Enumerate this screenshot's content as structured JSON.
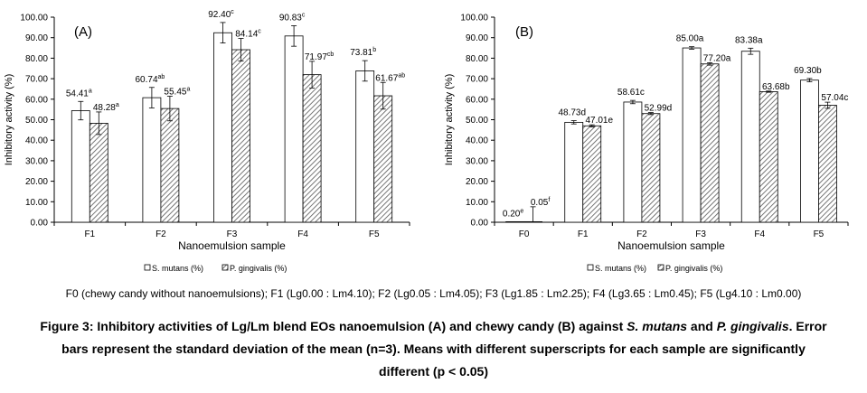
{
  "charts": [
    {
      "panel_label": "(A)",
      "xlabel": "Nanoemulsion sample",
      "ylabel": "Inhibitory activity (%)",
      "ylim": [
        0,
        100
      ],
      "yticks": [
        "0.00",
        "10.00",
        "20.00",
        "30.00",
        "40.00",
        "50.00",
        "60.00",
        "70.00",
        "80.00",
        "90.00",
        "100.00"
      ],
      "categories": [
        "F1",
        "F2",
        "F3",
        "F4",
        "F5"
      ],
      "series": [
        {
          "name": "S. mutans (%)",
          "fill": "#ffffff",
          "values": [
            54.41,
            60.74,
            92.4,
            90.83,
            73.81
          ],
          "errors": [
            4.5,
            5.0,
            5.0,
            5.0,
            5.0
          ],
          "labels": [
            "54.41",
            "60.74",
            "92.40",
            "90.83",
            "73.81"
          ],
          "sups": [
            "a",
            "ab",
            "c",
            "c",
            "b"
          ]
        },
        {
          "name": "P. gingivalis (%)",
          "fill": "hatch",
          "values": [
            48.28,
            55.45,
            84.14,
            71.97,
            61.67
          ],
          "errors": [
            5.5,
            6.0,
            5.5,
            6.5,
            6.5
          ],
          "labels": [
            "48.28",
            "55.45",
            "84.14",
            "71.97",
            "61.67"
          ],
          "sups": [
            "a",
            "a",
            "c",
            "cb",
            "ab"
          ]
        }
      ]
    },
    {
      "panel_label": "(B)",
      "xlabel": "Nanoemulsion sample",
      "ylabel": "Inhibitory activity (%)",
      "ylim": [
        0,
        100
      ],
      "yticks": [
        "0.00",
        "10.00",
        "20.00",
        "30.00",
        "40.00",
        "50.00",
        "60.00",
        "70.00",
        "80.00",
        "90.00",
        "100.00"
      ],
      "categories": [
        "F0",
        "F1",
        "F2",
        "F3",
        "F4",
        "F5"
      ],
      "series": [
        {
          "name": "S. mutans (%)",
          "fill": "#ffffff",
          "values": [
            0.2,
            48.73,
            58.61,
            85.0,
            83.38,
            69.3
          ],
          "errors": [
            0,
            0.8,
            0.8,
            0.6,
            1.5,
            0.8
          ],
          "labels": [
            "0.20",
            "48.73d",
            "58.61c",
            "85.00a",
            "83.38a",
            "69.30b"
          ],
          "sups": [
            "e",
            "",
            "",
            "",
            "",
            ""
          ]
        },
        {
          "name": "P. gingivalis (%)",
          "fill": "hatch",
          "values": [
            0.05,
            47.01,
            52.99,
            77.2,
            63.68,
            57.04
          ],
          "errors": [
            7.5,
            0.5,
            0.5,
            0.6,
            0.3,
            1.5
          ],
          "labels": [
            "0.05",
            "47.01e",
            "52.99d",
            "77.20a",
            "63.68b",
            "57.04c"
          ],
          "sups": [
            "f",
            "",
            "",
            "",
            "",
            ""
          ]
        }
      ]
    }
  ],
  "legend": {
    "s_mutans": "S. mutans (%)",
    "p_gingivalis": "P. gingivalis (%)"
  },
  "abbreviations": "F0 (chewy candy without nanoemulsions);     F1 (Lg0.00 : Lm4.10);     F2 (Lg0.05 : Lm4.05);     F3 (Lg1.85 : Lm2.25);     F4 (Lg3.65 : Lm0.45);     F5 (Lg4.10 : Lm0.00)",
  "caption": {
    "prefix": "Figure 3: Inhibitory activities of Lg/Lm blend EOs nanoemulsion (A) and chewy candy (B) against ",
    "species1": "S. mutans",
    "and": " and ",
    "species2": "P. gingivalis",
    "suffix": ". Error bars represent the standard deviation of the mean (n=3). Means with different superscripts for each sample are significantly different (p < 0.05)"
  },
  "chart_data": [
    {
      "type": "bar",
      "title": "(A)",
      "xlabel": "Nanoemulsion sample",
      "ylabel": "Inhibitory activity (%)",
      "ylim": [
        0,
        100
      ],
      "categories": [
        "F1",
        "F2",
        "F3",
        "F4",
        "F5"
      ],
      "series": [
        {
          "name": "S. mutans (%)",
          "values": [
            54.41,
            60.74,
            92.4,
            90.83,
            73.81
          ]
        },
        {
          "name": "P. gingivalis (%)",
          "values": [
            48.28,
            55.45,
            84.14,
            71.97,
            61.67
          ]
        }
      ]
    },
    {
      "type": "bar",
      "title": "(B)",
      "xlabel": "Nanoemulsion sample",
      "ylabel": "Inhibitory activity (%)",
      "ylim": [
        0,
        100
      ],
      "categories": [
        "F0",
        "F1",
        "F2",
        "F3",
        "F4",
        "F5"
      ],
      "series": [
        {
          "name": "S. mutans (%)",
          "values": [
            0.2,
            48.73,
            58.61,
            85.0,
            83.38,
            69.3
          ]
        },
        {
          "name": "P. gingivalis (%)",
          "values": [
            0.05,
            47.01,
            52.99,
            77.2,
            63.68,
            57.04
          ]
        }
      ]
    }
  ]
}
